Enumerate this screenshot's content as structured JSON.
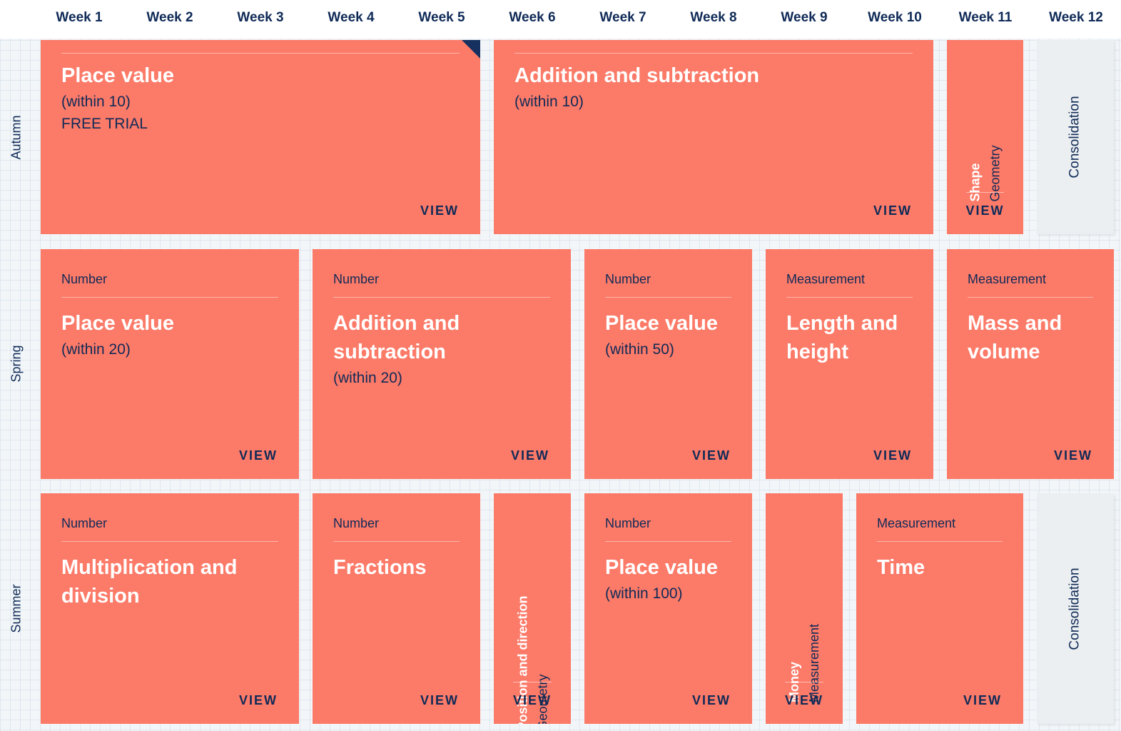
{
  "weeks": [
    "Week 1",
    "Week 2",
    "Week 3",
    "Week 4",
    "Week 5",
    "Week 6",
    "Week 7",
    "Week 8",
    "Week 9",
    "Week 10",
    "Week 11",
    "Week 12"
  ],
  "terms": [
    "Autumn",
    "Spring",
    "Summer"
  ],
  "view_label": "VIEW",
  "colors": {
    "card": "#fc7a68",
    "navy": "#0f2a57",
    "consolidation": "#eceff1"
  },
  "autumn": {
    "place_value": {
      "title": "Place value",
      "sub": "(within 10)",
      "trial": "FREE TRIAL"
    },
    "addition": {
      "title": "Addition and subtraction",
      "sub": "(within 10)"
    },
    "shape": {
      "category": "Geometry",
      "title": "Shape"
    },
    "consolidation": "Consolidation"
  },
  "spring": {
    "place_value": {
      "category": "Number",
      "title": "Place value",
      "sub": "(within 20)"
    },
    "addition": {
      "category": "Number",
      "title": "Addition and subtraction",
      "sub": "(within 20)"
    },
    "place_value_50": {
      "category": "Number",
      "title": "Place value",
      "sub": "(within 50)"
    },
    "length": {
      "category": "Measurement",
      "title": "Length and height"
    },
    "mass": {
      "category": "Measurement",
      "title": "Mass and volume"
    }
  },
  "summer": {
    "multiplication": {
      "category": "Number",
      "title": "Multiplication and division"
    },
    "fractions": {
      "category": "Number",
      "title": "Fractions"
    },
    "position": {
      "category": "Geometry",
      "title": "Position and direction"
    },
    "place_value_100": {
      "category": "Number",
      "title": "Place value",
      "sub": "(within 100)"
    },
    "money": {
      "category": "Measurement",
      "title": "Money"
    },
    "time": {
      "category": "Measurement",
      "title": "Time"
    },
    "consolidation": "Consolidation"
  }
}
